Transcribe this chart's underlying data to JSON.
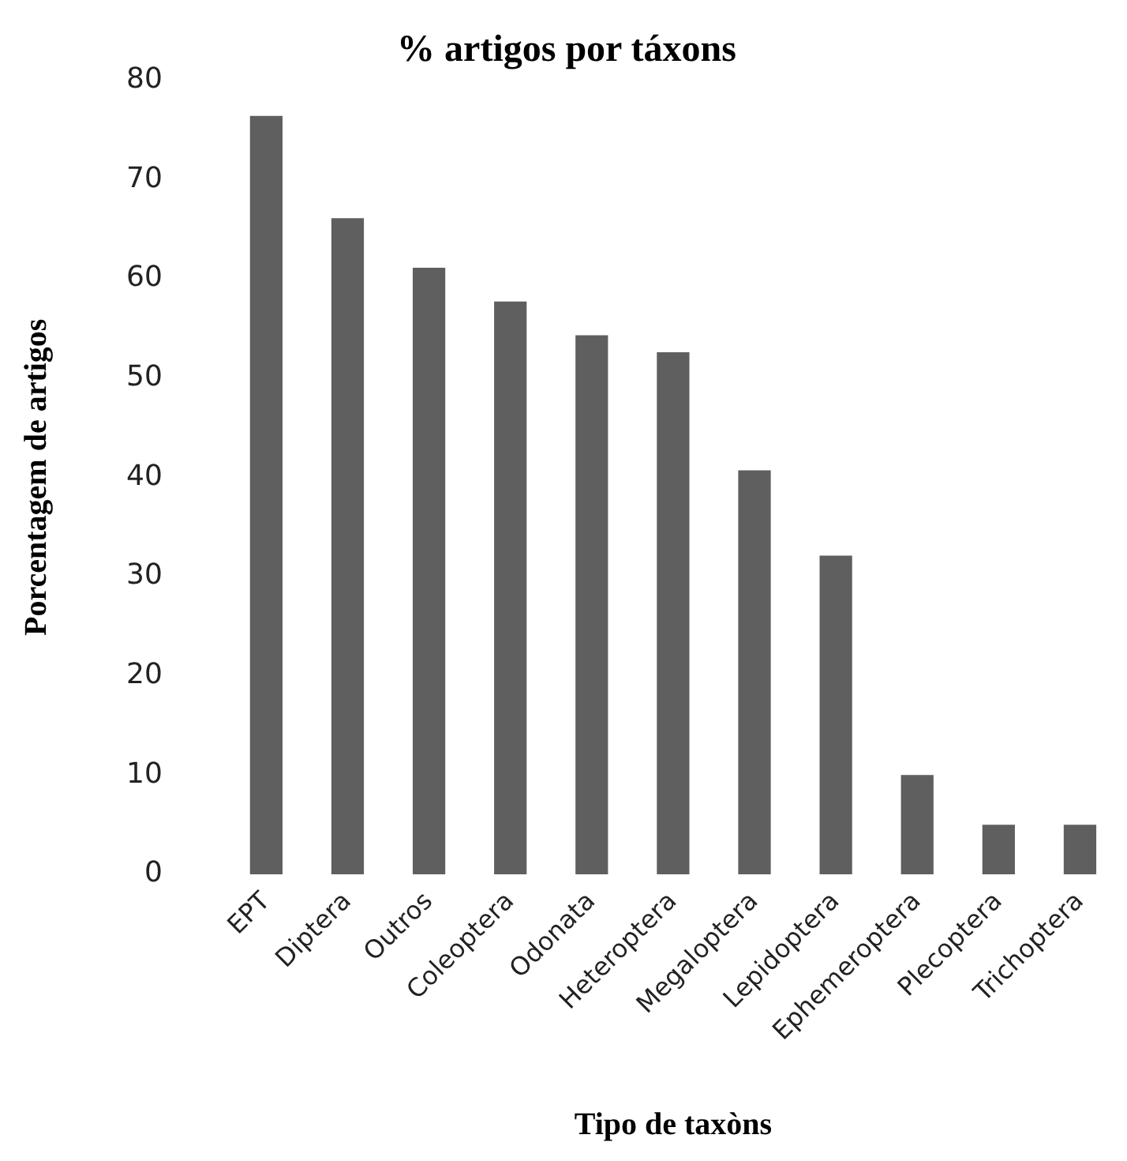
{
  "chart_data": {
    "type": "bar",
    "title": "% artigos por táxons",
    "xlabel": "Tipo de taxòns",
    "ylabel": "Porcentagem de artigos",
    "categories": [
      "EPT",
      "Diptera",
      "Outros",
      "Coleoptera",
      "Odonata",
      "Heteroptera",
      "Megaloptera",
      "Lepidoptera",
      "Ephemeroptera",
      "Plecoptera",
      "Trichoptera"
    ],
    "values": [
      76.4,
      66.1,
      61.1,
      57.7,
      54.3,
      52.6,
      40.7,
      32.1,
      10,
      5,
      5
    ],
    "color": "#5f5f5f",
    "ylim": [
      0,
      80
    ],
    "yticks": [
      0,
      10,
      20,
      30,
      40,
      50,
      60,
      70,
      80
    ],
    "grid": false,
    "legend": false
  }
}
